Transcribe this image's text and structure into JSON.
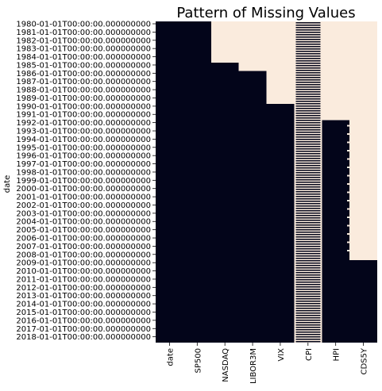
{
  "chart_data": {
    "type": "heatmap",
    "title": "Pattern of Missing Values",
    "ylabel": "date",
    "xlabel": "",
    "columns": [
      "date",
      "SP500",
      "NASDAQ",
      "LIBOR3M",
      "VIX",
      "CPI",
      "HPI",
      "CDS5Y"
    ],
    "row_labels": [
      "1980-01-01T00:00:00.000000000",
      "1981-01-01T00:00:00.000000000",
      "1982-01-01T00:00:00.000000000",
      "1983-01-01T00:00:00.000000000",
      "1984-01-01T00:00:00.000000000",
      "1985-01-01T00:00:00.000000000",
      "1986-01-01T00:00:00.000000000",
      "1987-01-01T00:00:00.000000000",
      "1988-01-01T00:00:00.000000000",
      "1989-01-01T00:00:00.000000000",
      "1990-01-01T00:00:00.000000000",
      "1991-01-01T00:00:00.000000000",
      "1992-01-01T00:00:00.000000000",
      "1993-01-01T00:00:00.000000000",
      "1994-01-01T00:00:00.000000000",
      "1995-01-01T00:00:00.000000000",
      "1996-01-01T00:00:00.000000000",
      "1997-01-01T00:00:00.000000000",
      "1998-01-01T00:00:00.000000000",
      "1999-01-01T00:00:00.000000000",
      "2000-01-01T00:00:00.000000000",
      "2001-01-01T00:00:00.000000000",
      "2002-01-01T00:00:00.000000000",
      "2003-01-01T00:00:00.000000000",
      "2004-01-01T00:00:00.000000000",
      "2005-01-01T00:00:00.000000000",
      "2006-01-01T00:00:00.000000000",
      "2007-01-01T00:00:00.000000000",
      "2008-01-01T00:00:00.000000000",
      "2009-01-01T00:00:00.000000000",
      "2010-01-01T00:00:00.000000000",
      "2011-01-01T00:00:00.000000000",
      "2012-01-01T00:00:00.000000000",
      "2013-01-01T00:00:00.000000000",
      "2014-01-01T00:00:00.000000000",
      "2015-01-01T00:00:00.000000000",
      "2016-01-01T00:00:00.000000000",
      "2017-01-01T00:00:00.000000000",
      "2018-01-01T00:00:00.000000000"
    ],
    "missing_until": {
      "date": null,
      "SP500": null,
      "NASDAQ": "1985-01-01",
      "LIBOR3M": "1986-01-01",
      "VIX": "1990-01-01",
      "CPI": "2018-12-31",
      "HPI": "1992-01-01",
      "CDS5Y": "2009-01-01"
    },
    "intermittent_missing": {
      "CPI": "most months missing 1980-2018",
      "HPI": "sporadic gaps 1992-2008"
    },
    "colors": {
      "present": "#03051a",
      "missing": "#faebdd"
    },
    "grid": false,
    "legend": "none"
  }
}
